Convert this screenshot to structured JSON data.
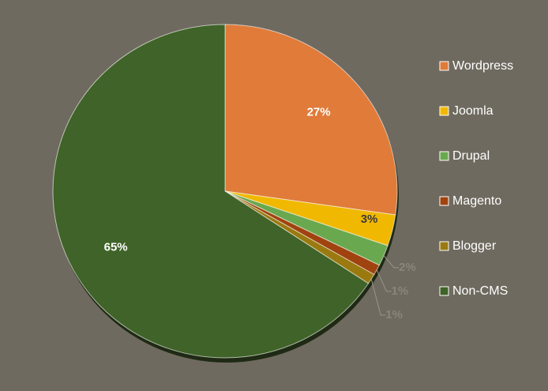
{
  "chart_data": {
    "type": "pie",
    "categories": [
      "Wordpress",
      "Joomla",
      "Drupal",
      "Magento",
      "Blogger",
      "Non-CMS"
    ],
    "values": [
      27,
      3,
      2,
      1,
      1,
      65
    ],
    "value_labels": [
      "27%",
      "3%",
      "2%",
      "1%",
      "1%",
      "65%"
    ],
    "colors": [
      "#e07b39",
      "#f0b800",
      "#6aa84f",
      "#a0430f",
      "#9a7a10",
      "#3f6328"
    ],
    "legend": "right"
  }
}
